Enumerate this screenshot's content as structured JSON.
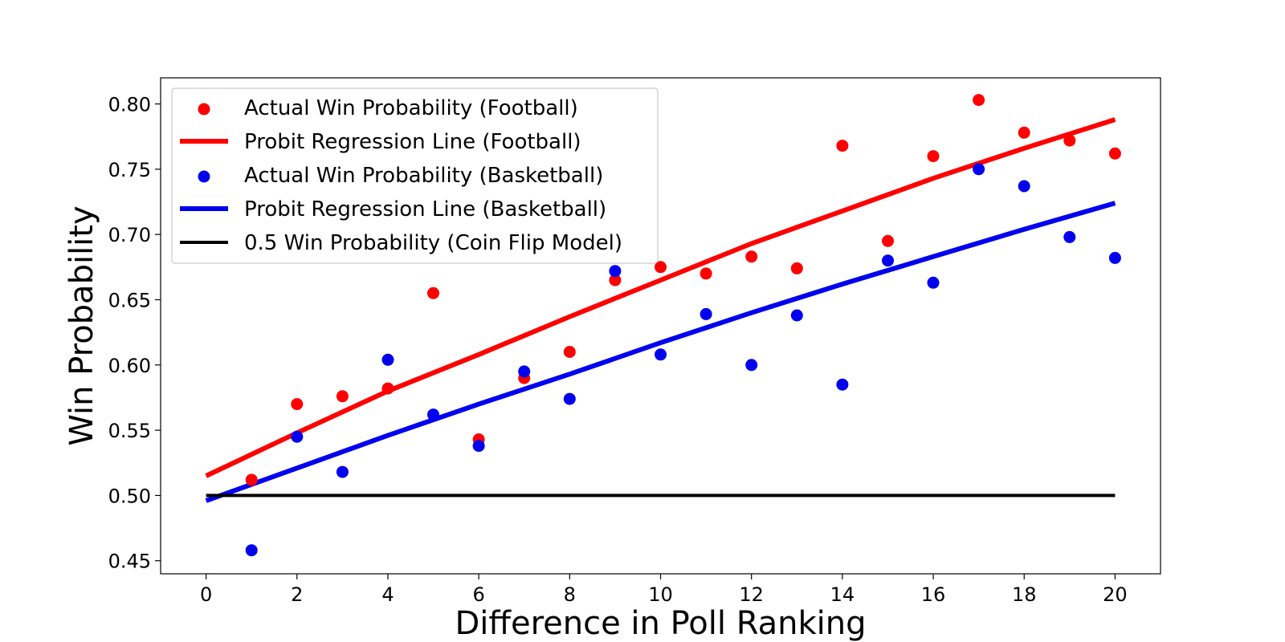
{
  "chart_data": {
    "type": "scatter",
    "title": "",
    "xlabel": "Difference in Poll Ranking",
    "ylabel": "Win Probability",
    "xlim": [
      -1,
      21
    ],
    "ylim": [
      0.44,
      0.82
    ],
    "xticks": [
      0,
      2,
      4,
      6,
      8,
      10,
      12,
      14,
      16,
      18,
      20
    ],
    "yticks": [
      0.45,
      0.5,
      0.55,
      0.6,
      0.65,
      0.7,
      0.75,
      0.8
    ],
    "ytick_labels": [
      "0.45",
      "0.50",
      "0.55",
      "0.60",
      "0.65",
      "0.70",
      "0.75",
      "0.80"
    ],
    "grid": false,
    "legend_position": "upper-left",
    "series": [
      {
        "name": "Actual Win Probability (Football)",
        "kind": "scatter",
        "color": "#ff0000",
        "x": [
          1,
          2,
          3,
          4,
          5,
          6,
          7,
          8,
          9,
          10,
          11,
          12,
          13,
          14,
          15,
          16,
          17,
          18,
          19,
          20
        ],
        "y": [
          0.512,
          0.57,
          0.576,
          0.582,
          0.655,
          0.543,
          0.59,
          0.61,
          0.665,
          0.675,
          0.67,
          0.683,
          0.674,
          0.768,
          0.695,
          0.76,
          0.803,
          0.778,
          0.772,
          0.762
        ]
      },
      {
        "name": "Probit Regression Line (Football)",
        "kind": "line",
        "color": "#ff0000",
        "x": [
          0,
          2,
          4,
          6,
          8,
          10,
          12,
          14,
          16,
          18,
          20
        ],
        "y": [
          0.515,
          0.548,
          0.58,
          0.608,
          0.637,
          0.665,
          0.693,
          0.718,
          0.743,
          0.766,
          0.788
        ]
      },
      {
        "name": "Actual Win Probability (Basketball)",
        "kind": "scatter",
        "color": "#0000ee",
        "x": [
          1,
          2,
          3,
          4,
          5,
          6,
          7,
          8,
          9,
          10,
          11,
          12,
          13,
          14,
          15,
          16,
          17,
          18,
          19,
          20
        ],
        "y": [
          0.458,
          0.545,
          0.518,
          0.604,
          0.562,
          0.538,
          0.595,
          0.574,
          0.672,
          0.608,
          0.639,
          0.6,
          0.638,
          0.585,
          0.68,
          0.663,
          0.75,
          0.737,
          0.698,
          0.682
        ]
      },
      {
        "name": "Probit Regression Line (Basketball)",
        "kind": "line",
        "color": "#0000ee",
        "x": [
          0,
          2,
          4,
          6,
          8,
          10,
          12,
          14,
          16,
          18,
          20
        ],
        "y": [
          0.496,
          0.521,
          0.546,
          0.57,
          0.593,
          0.617,
          0.64,
          0.662,
          0.683,
          0.704,
          0.724
        ]
      },
      {
        "name": "0.5 Win Probability (Coin Flip Model)",
        "kind": "line",
        "color": "#000000",
        "x": [
          0,
          20
        ],
        "y": [
          0.5,
          0.5
        ]
      }
    ]
  }
}
